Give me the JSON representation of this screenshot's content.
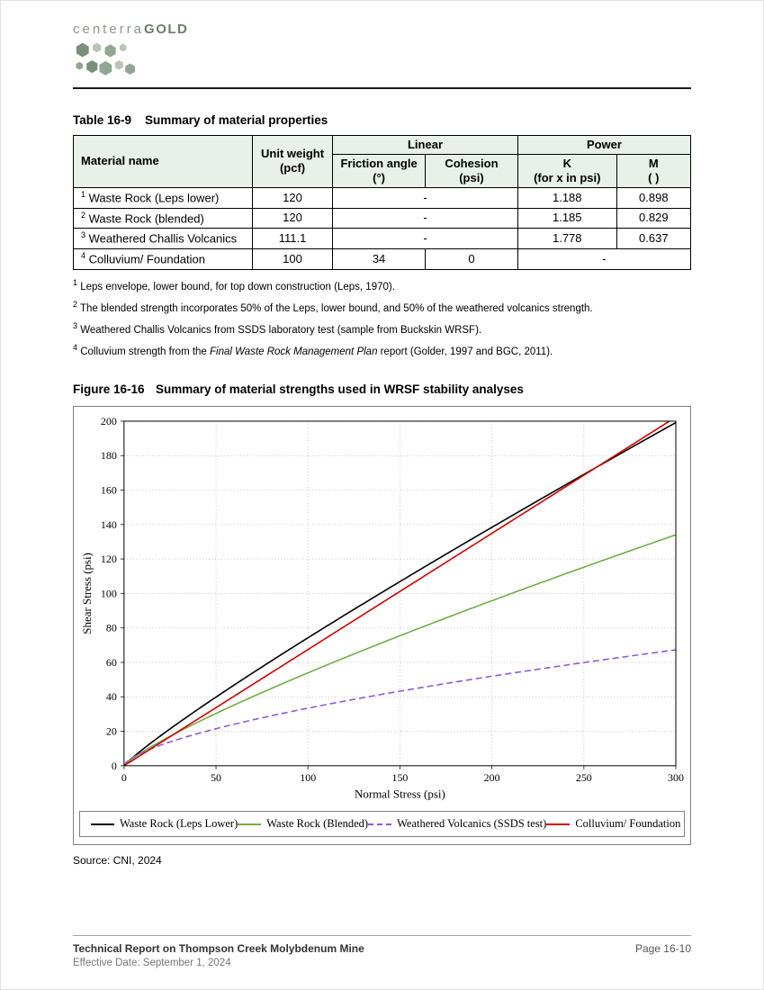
{
  "colors": {
    "brand_light": "#b7c6b7",
    "brand_medium": "#93a593",
    "brand_dark": "#7c8f7c",
    "wordmark": "#8b968b",
    "wordmark_bold": "#6e7d6e",
    "table_header_bg": "#e9efe9",
    "rule_dark": "#1a1a1a",
    "rule_light": "#a6a6a6"
  },
  "logo": {
    "wordmark": "centerra",
    "wordmark_bold": "GOLD"
  },
  "table": {
    "label": "Table 16-9",
    "title": "Summary of material properties",
    "headers": {
      "material": "Material name",
      "unit_weight_1": "Unit weight",
      "unit_weight_2": "(pcf)",
      "linear": "Linear",
      "power": "Power",
      "friction_1": "Friction angle",
      "friction_2": "(°)",
      "cohesion_1": "Cohesion",
      "cohesion_2": "(psi)",
      "k_1": "K",
      "k_2": "(for x in psi)",
      "m_1": "M",
      "m_2": "( )"
    },
    "rows": [
      {
        "sup": "1",
        "name": "Waste Rock (Leps lower)",
        "unit_weight": "120",
        "linear": "-",
        "k": "1.188",
        "m": "0.898"
      },
      {
        "sup": "2",
        "name": "Waste Rock (blended)",
        "unit_weight": "120",
        "linear": "-",
        "k": "1.185",
        "m": "0.829"
      },
      {
        "sup": "3",
        "name": "Weathered Challis Volcanics",
        "unit_weight": "111.1",
        "linear": "-",
        "k": "1.778",
        "m": "0.637"
      },
      {
        "sup": "4",
        "name": "Colluvium/ Foundation",
        "unit_weight": "100",
        "friction": "34",
        "cohesion": "0",
        "power": "-"
      }
    ],
    "footnotes": [
      {
        "sup": "1",
        "text": "Leps envelope, lower bound, for top down construction (Leps, 1970)."
      },
      {
        "sup": "2",
        "text": "The blended strength incorporates 50% of the Leps, lower bound, and 50% of the weathered volcanics strength."
      },
      {
        "sup": "3",
        "text": "Weathered Challis Volcanics from SSDS laboratory test (sample from Buckskin WRSF)."
      },
      {
        "sup": "4",
        "prefix": "Colluvium strength from the ",
        "italic": "Final Waste Rock Management Plan",
        "suffix": " report (Golder, 1997 and BGC, 2011)."
      }
    ]
  },
  "figure": {
    "label": "Figure 16-16",
    "title": "Summary of material strengths used in WRSF stability analyses",
    "source": "Source: CNI, 2024"
  },
  "chart_data": {
    "type": "line",
    "title": "",
    "xlabel": "Normal Stress (psi)",
    "ylabel": "Shear Stress (psi)",
    "xlim": [
      0,
      300
    ],
    "ylim": [
      0,
      200
    ],
    "xticks": [
      0,
      50,
      100,
      150,
      200,
      250,
      300
    ],
    "yticks": [
      0,
      20,
      40,
      60,
      80,
      100,
      120,
      140,
      160,
      180,
      200
    ],
    "grid": true,
    "legend_position": "bottom",
    "series": [
      {
        "name": "Waste Rock (Leps Lower)",
        "color": "#000000",
        "dash": "solid",
        "model": "power",
        "k": 1.188,
        "m": 0.898
      },
      {
        "name": "Waste Rock (Blended)",
        "color": "#70ad47",
        "dash": "solid",
        "model": "power",
        "k": 1.185,
        "m": 0.829
      },
      {
        "name": "Weathered Volcanics (SSDS test)",
        "color": "#8c5cd9",
        "dash": "dashed",
        "model": "power",
        "k": 1.778,
        "m": 0.637
      },
      {
        "name": "Colluvium/ Foundation",
        "color": "#d40000",
        "dash": "solid",
        "model": "linear",
        "friction_deg": 34,
        "cohesion": 0
      }
    ]
  },
  "footer": {
    "report_title": "Technical Report on Thompson Creek Molybdenum Mine",
    "page": "Page 16-10",
    "effective_date": "Effective Date: September 1, 2024"
  }
}
